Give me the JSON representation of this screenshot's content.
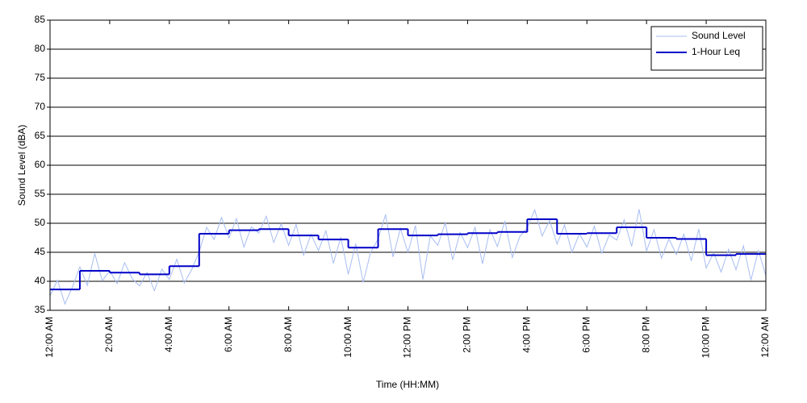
{
  "chart_data": {
    "type": "line",
    "x_label": "Time (HH:MM)",
    "y_label": "Sound Level (dBA)",
    "xlim": [
      0,
      24
    ],
    "ylim": [
      35,
      85
    ],
    "xticks": [
      {
        "value": 0,
        "label": "12:00 AM"
      },
      {
        "value": 2,
        "label": "2:00 AM"
      },
      {
        "value": 4,
        "label": "4:00 AM"
      },
      {
        "value": 6,
        "label": "6:00 AM"
      },
      {
        "value": 8,
        "label": "8:00 AM"
      },
      {
        "value": 10,
        "label": "10:00 AM"
      },
      {
        "value": 12,
        "label": "12:00 PM"
      },
      {
        "value": 14,
        "label": "2:00 PM"
      },
      {
        "value": 16,
        "label": "4:00 PM"
      },
      {
        "value": 18,
        "label": "6:00 PM"
      },
      {
        "value": 20,
        "label": "8:00 PM"
      },
      {
        "value": 22,
        "label": "10:00 PM"
      },
      {
        "value": 24,
        "label": "12:00 AM"
      }
    ],
    "yticks": [
      35,
      40,
      45,
      50,
      55,
      60,
      65,
      70,
      75,
      80,
      85
    ],
    "grid": true,
    "legend": "upper-right",
    "series": [
      {
        "name": "Sound Level",
        "color": "#a7bdf2",
        "style": "line",
        "x": [
          0,
          0.25,
          0.5,
          0.75,
          1,
          1.25,
          1.5,
          1.75,
          2,
          2.25,
          2.5,
          2.75,
          3,
          3.25,
          3.5,
          3.75,
          4,
          4.25,
          4.5,
          4.75,
          5,
          5.25,
          5.5,
          5.75,
          6,
          6.25,
          6.5,
          6.75,
          7,
          7.25,
          7.5,
          7.75,
          8,
          8.25,
          8.5,
          8.75,
          9,
          9.25,
          9.5,
          9.75,
          10,
          10.25,
          10.5,
          10.75,
          11,
          11.25,
          11.5,
          11.75,
          12,
          12.25,
          12.5,
          12.75,
          13,
          13.25,
          13.5,
          13.75,
          14,
          14.25,
          14.5,
          14.75,
          15,
          15.25,
          15.5,
          15.75,
          16,
          16.25,
          16.5,
          16.75,
          17,
          17.25,
          17.5,
          17.75,
          18,
          18.25,
          18.5,
          18.75,
          19,
          19.25,
          19.5,
          19.75,
          20,
          20.25,
          20.5,
          20.75,
          21,
          21.25,
          21.5,
          21.75,
          22,
          22.25,
          22.5,
          22.75,
          23,
          23.25,
          23.5,
          23.75,
          24
        ],
        "values": [
          37.5,
          40.2,
          36.1,
          39.0,
          42.5,
          39.3,
          44.8,
          40.1,
          41.8,
          39.6,
          43.2,
          40.5,
          39.2,
          41.5,
          38.4,
          42.1,
          40.3,
          43.8,
          39.7,
          42.0,
          45.1,
          49.3,
          47.2,
          51.0,
          47.5,
          50.8,
          45.9,
          49.4,
          48.3,
          51.2,
          46.7,
          49.9,
          46.2,
          49.8,
          44.5,
          48.1,
          45.3,
          48.7,
          43.1,
          47.6,
          41.2,
          46.5,
          39.8,
          45.0,
          47.3,
          51.5,
          44.2,
          49.1,
          45.0,
          49.6,
          40.3,
          47.8,
          46.2,
          50.1,
          43.7,
          48.4,
          45.8,
          49.3,
          43.0,
          48.9,
          46.0,
          50.4,
          44.1,
          47.7,
          49.2,
          52.3,
          47.8,
          50.5,
          46.4,
          49.7,
          45.0,
          48.2,
          45.9,
          49.5,
          44.8,
          48.0,
          47.1,
          50.6,
          46.0,
          52.4,
          45.2,
          48.9,
          44.0,
          47.3,
          44.6,
          48.1,
          43.5,
          49.0,
          42.3,
          44.9,
          41.6,
          45.5,
          42.0,
          46.1,
          40.2,
          45.3,
          41.0
        ]
      },
      {
        "name": "1-Hour Leq",
        "color": "#0000c8",
        "style": "step",
        "x": [
          0,
          1,
          2,
          3,
          4,
          5,
          6,
          7,
          8,
          9,
          10,
          11,
          12,
          13,
          14,
          15,
          16,
          17,
          18,
          19,
          20,
          21,
          22,
          23
        ],
        "values": [
          38.6,
          41.8,
          41.5,
          41.2,
          42.6,
          48.2,
          48.8,
          49.0,
          47.9,
          47.2,
          45.8,
          49.0,
          47.9,
          48.1,
          48.3,
          48.5,
          50.7,
          48.2,
          48.3,
          49.3,
          47.5,
          47.3,
          44.5,
          44.7
        ]
      }
    ]
  }
}
